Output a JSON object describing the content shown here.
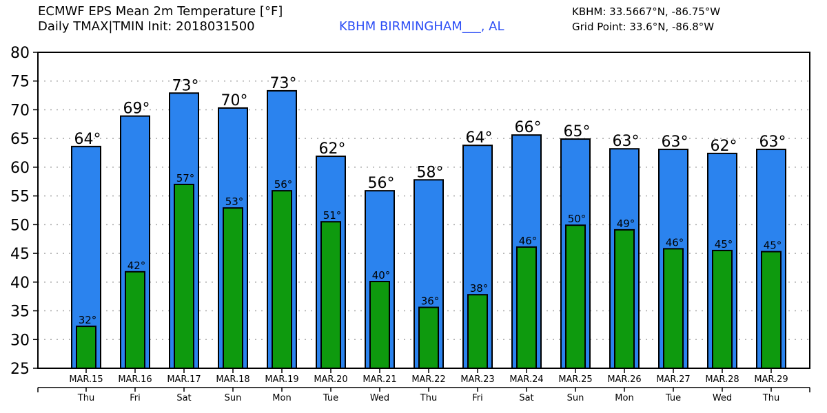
{
  "header": {
    "title": "ECMWF EPS Mean 2m Temperature [°F]",
    "subtitle": "Daily TMAX|TMIN Init: 2018031500",
    "station": "KBHM BIRMINGHAM___, AL",
    "station_coords": "KBHM: 33.5667°N, -86.75°W",
    "grid_point": "Grid Point: 33.6°N, -86.8°W"
  },
  "colors": {
    "tmax": "#2b83ee",
    "tmin": "#0e9a0e",
    "station": "#2a4cf5"
  },
  "chart_data": {
    "type": "bar",
    "title": "ECMWF EPS Mean 2m Temperature [°F]",
    "ylabel": "",
    "xlabel": "",
    "ylim": [
      25,
      80
    ],
    "yticks": [
      25,
      30,
      35,
      40,
      45,
      50,
      55,
      60,
      65,
      70,
      75,
      80
    ],
    "grid": true,
    "categories": [
      "MAR.15",
      "MAR.16",
      "MAR.17",
      "MAR.18",
      "MAR.19",
      "MAR.20",
      "MAR.21",
      "MAR.22",
      "MAR.23",
      "MAR.24",
      "MAR.25",
      "MAR.26",
      "MAR.27",
      "MAR.28",
      "MAR.29"
    ],
    "weekdays": [
      "Thu",
      "Fri",
      "Sat",
      "Sun",
      "Mon",
      "Tue",
      "Wed",
      "Thu",
      "Fri",
      "Sat",
      "Sun",
      "Mon",
      "Tue",
      "Wed",
      "Thu"
    ],
    "series": [
      {
        "name": "TMAX",
        "values": [
          63.6,
          68.9,
          72.9,
          70.3,
          73.3,
          61.9,
          55.9,
          57.8,
          63.8,
          65.6,
          64.9,
          63.2,
          63.1,
          62.4,
          63.1
        ],
        "labels": [
          "64°",
          "69°",
          "73°",
          "70°",
          "73°",
          "62°",
          "56°",
          "58°",
          "64°",
          "66°",
          "65°",
          "63°",
          "63°",
          "62°",
          "63°"
        ]
      },
      {
        "name": "TMIN",
        "values": [
          32.3,
          41.8,
          57.0,
          52.9,
          55.9,
          50.5,
          40.1,
          35.6,
          37.8,
          46.1,
          49.9,
          49.1,
          45.8,
          45.5,
          45.3
        ],
        "labels": [
          "32°",
          "42°",
          "57°",
          "53°",
          "56°",
          "51°",
          "40°",
          "36°",
          "38°",
          "46°",
          "50°",
          "49°",
          "46°",
          "45°",
          "45°"
        ]
      }
    ]
  }
}
